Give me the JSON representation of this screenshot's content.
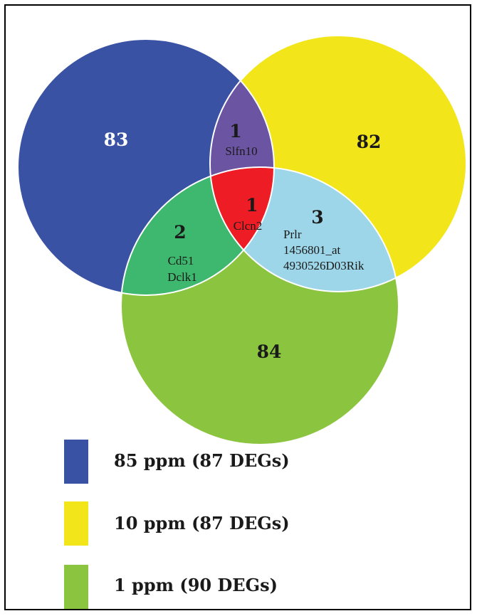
{
  "sets": [
    {
      "name": "85 ppm (87 DEGs)",
      "color": "#3a52a4"
    },
    {
      "name": "10 ppm (87 DEGs)",
      "color": "#f2e61a"
    },
    {
      "name": "1 ppm (90 DEGs)",
      "color": "#8bc43f"
    }
  ],
  "regions": {
    "only_85": {
      "count": "83",
      "color": "#3a52a4"
    },
    "only_10": {
      "count": "82",
      "color": "#f2e61a"
    },
    "only_1": {
      "count": "84",
      "color": "#8bc43f"
    },
    "i_85_10": {
      "count": "1",
      "genes": [
        "Slfn10"
      ],
      "color": "#6b55a3"
    },
    "i_85_1": {
      "count": "2",
      "genes": [
        "Cd51",
        "Dclk1"
      ],
      "color": "#3db86e"
    },
    "i_10_1": {
      "count": "3",
      "genes": [
        "Prlr",
        "1456801_at",
        "4930526D03Rik"
      ],
      "color": "#9dd6e8"
    },
    "i_all": {
      "count": "1",
      "genes": [
        "Clcn2"
      ],
      "color": "#ee1c24"
    }
  }
}
